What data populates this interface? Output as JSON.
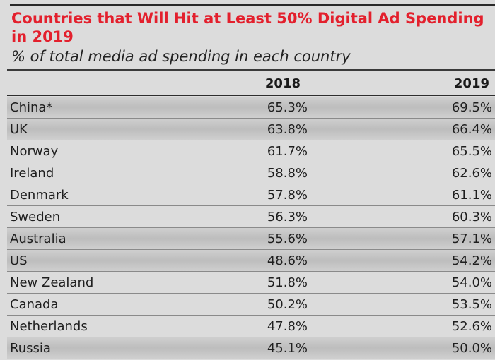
{
  "title": "Countries that Will Hit at Least 50% Digital Ad Spending in 2019",
  "subtitle": "% of total media ad spending in each country",
  "chart_data": {
    "type": "table",
    "columns": [
      "2018",
      "2019"
    ],
    "rows": [
      {
        "country": "China*",
        "y2018": "65.3%",
        "y2019": "69.5%"
      },
      {
        "country": "UK",
        "y2018": "63.8%",
        "y2019": "66.4%"
      },
      {
        "country": "Norway",
        "y2018": "61.7%",
        "y2019": "65.5%"
      },
      {
        "country": "Ireland",
        "y2018": "58.8%",
        "y2019": "62.6%"
      },
      {
        "country": "Denmark",
        "y2018": "57.8%",
        "y2019": "61.1%"
      },
      {
        "country": "Sweden",
        "y2018": "56.3%",
        "y2019": "60.3%"
      },
      {
        "country": "Australia",
        "y2018": "55.6%",
        "y2019": "57.1%"
      },
      {
        "country": "US",
        "y2018": "48.6%",
        "y2019": "54.2%"
      },
      {
        "country": "New Zealand",
        "y2018": "51.8%",
        "y2019": "54.0%"
      },
      {
        "country": "Canada",
        "y2018": "50.2%",
        "y2019": "53.5%"
      },
      {
        "country": "Netherlands",
        "y2018": "47.8%",
        "y2019": "52.6%"
      },
      {
        "country": "Russia",
        "y2018": "45.1%",
        "y2019": "50.0%"
      }
    ]
  }
}
